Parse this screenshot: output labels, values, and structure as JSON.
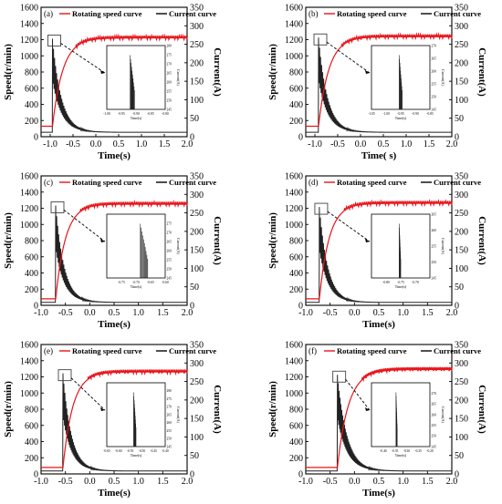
{
  "figure": {
    "colors": {
      "speed": "#e8141a",
      "current": "#222222",
      "axis": "#000000",
      "dash": "#000000"
    },
    "legend": {
      "speed": "Rotating speed curve",
      "current": "Current curve"
    },
    "y_left_label": "Speed(r/min)",
    "y_right_label": "Current(A)",
    "inset_y_label": "Current(A)",
    "inset_x_label": "Time(s)"
  },
  "chart_data": [
    {
      "type": "line",
      "label": "(a)",
      "xlabel": "Time(s)",
      "ylabel": "Speed(r/min)",
      "y2label": "Current(A)",
      "xlim": [
        -1.2,
        2.0
      ],
      "xticks": [
        "-1.0",
        "-0.5",
        "0.0",
        "0.5",
        "1.0",
        "1.5",
        "2.0"
      ],
      "ylim": [
        0,
        1600
      ],
      "yticks": [
        "0",
        "200",
        "400",
        "600",
        "800",
        "1000",
        "1200",
        "1400",
        "1600"
      ],
      "y2lim": [
        0,
        350
      ],
      "y2ticks": [
        "0",
        "50",
        "100",
        "150",
        "200",
        "250",
        "300",
        "350"
      ],
      "legend_position": "top",
      "series": [
        {
          "name": "Rotating speed curve",
          "axis": "left",
          "start": -0.95,
          "base": 130,
          "final": 1220,
          "tau": 0.09
        },
        {
          "name": "Current curve",
          "axis": "right",
          "start": -0.95,
          "base": 12,
          "peak": 265,
          "final": 12,
          "tau": 0.09
        }
      ],
      "inset": {
        "xlim": [
          -1.0,
          -0.8
        ],
        "xticks": [
          "-1.00",
          "-0.95",
          "-0.90",
          "-0.85",
          "-0.80"
        ],
        "ylim": [
          245,
          280
        ],
        "yticks": [
          "245",
          "250",
          "255",
          "260",
          "265",
          "270",
          "275",
          "280"
        ],
        "burst_x": [
          -0.92,
          -0.905
        ]
      }
    },
    {
      "type": "line",
      "label": "(b)",
      "xlabel": "Time( s)",
      "ylabel": "Speed(r/min)",
      "y2label": "Current(A)",
      "xlim": [
        -1.2,
        2.0
      ],
      "xticks": [
        "-1.0",
        "-0.5",
        "0.0",
        "0.5",
        "1.0",
        "1.5",
        "2.0"
      ],
      "ylim": [
        0,
        1600
      ],
      "yticks": [
        "0",
        "200",
        "400",
        "600",
        "800",
        "1000",
        "1200",
        "1400",
        "1600"
      ],
      "y2lim": [
        0,
        350
      ],
      "y2ticks": [
        "0",
        "50",
        "100",
        "150",
        "200",
        "250",
        "300",
        "350"
      ],
      "legend_position": "top",
      "series": [
        {
          "name": "Rotating speed curve",
          "axis": "left",
          "start": -0.92,
          "base": 130,
          "final": 1235,
          "tau": 0.09
        },
        {
          "name": "Current curve",
          "axis": "right",
          "start": -0.92,
          "base": 12,
          "peak": 268,
          "final": 12,
          "tau": 0.09
        }
      ],
      "inset": {
        "xlim": [
          -1.05,
          -0.85
        ],
        "xticks": [
          "-1.05",
          "-1.00",
          "-0.95",
          "-0.90",
          "-0.85"
        ],
        "ylim": [
          245,
          270
        ],
        "yticks": [
          "245",
          "250",
          "255",
          "260",
          "265",
          "270"
        ],
        "burst_x": [
          -0.955,
          -0.945
        ]
      }
    },
    {
      "type": "line",
      "label": "(c)",
      "xlabel": "Time(s)",
      "ylabel": "Speed(r/min)",
      "y2label": "Current(A)",
      "xlim": [
        -1.0,
        2.0
      ],
      "xticks": [
        "-1.0",
        "-0.5",
        "0.0",
        "0.5",
        "1.0",
        "1.5",
        "2.0"
      ],
      "ylim": [
        0,
        1600
      ],
      "yticks": [
        "0",
        "200",
        "400",
        "600",
        "800",
        "1000",
        "1200",
        "1400",
        "1600"
      ],
      "y2lim": [
        0,
        350
      ],
      "y2ticks": [
        "0",
        "50",
        "100",
        "150",
        "200",
        "250",
        "300",
        "350"
      ],
      "legend_position": "top",
      "series": [
        {
          "name": "Rotating speed curve",
          "axis": "left",
          "start": -0.7,
          "base": 80,
          "final": 1250,
          "tau": 0.08
        },
        {
          "name": "Current curve",
          "axis": "right",
          "start": -0.7,
          "base": 8,
          "peak": 270,
          "final": 8,
          "tau": 0.08
        }
      ],
      "inset": {
        "xlim": [
          -0.8,
          -0.6
        ],
        "xticks": [
          "-0.75",
          "-0.70",
          "-0.65",
          "-0.60"
        ],
        "ylim": [
          245,
          280
        ],
        "yticks": [
          "245",
          "250",
          "255",
          "260",
          "265",
          "270",
          "275"
        ],
        "burst_x": [
          -0.685,
          -0.66
        ]
      }
    },
    {
      "type": "line",
      "label": "(d)",
      "xlabel": "Time(s)",
      "ylabel": "Speed(r/min)",
      "y2label": "Current(A)",
      "xlim": [
        -1.0,
        2.0
      ],
      "xticks": [
        "-1.0",
        "-0.5",
        "0.0",
        "0.5",
        "1.0",
        "1.5",
        "2.0"
      ],
      "ylim": [
        0,
        1600
      ],
      "yticks": [
        "0",
        "200",
        "400",
        "600",
        "800",
        "1000",
        "1200",
        "1400",
        "1600"
      ],
      "y2lim": [
        0,
        350
      ],
      "y2ticks": [
        "0",
        "50",
        "100",
        "150",
        "200",
        "250",
        "300",
        "350"
      ],
      "legend_position": "top",
      "series": [
        {
          "name": "Rotating speed curve",
          "axis": "left",
          "start": -0.72,
          "base": 80,
          "final": 1260,
          "tau": 0.08
        },
        {
          "name": "Current curve",
          "axis": "right",
          "start": -0.72,
          "base": 8,
          "peak": 266,
          "final": 8,
          "tau": 0.08
        }
      ],
      "inset": {
        "xlim": [
          -0.85,
          -0.65
        ],
        "xticks": [
          "-0.80",
          "-0.75",
          "-0.70"
        ],
        "ylim": [
          245,
          265
        ],
        "yticks": [
          "245",
          "250",
          "255",
          "260",
          "265"
        ],
        "burst_x": [
          -0.755,
          -0.75
        ]
      }
    },
    {
      "type": "line",
      "label": "(e)",
      "xlabel": "Time(s)",
      "ylabel": "Speed(r/min)",
      "y2label": "Current(A)",
      "xlim": [
        -1.0,
        2.0
      ],
      "xticks": [
        "-1.0",
        "-0.5",
        "0.0",
        "0.5",
        "1.0",
        "1.5",
        "2.0"
      ],
      "ylim": [
        0,
        1600
      ],
      "yticks": [
        "0",
        "200",
        "400",
        "600",
        "800",
        "1000",
        "1200",
        "1400",
        "1600"
      ],
      "y2lim": [
        0,
        350
      ],
      "y2ticks": [
        "0",
        "50",
        "100",
        "150",
        "200",
        "250",
        "300",
        "350"
      ],
      "legend_position": "top",
      "series": [
        {
          "name": "Rotating speed curve",
          "axis": "left",
          "start": -0.55,
          "base": 80,
          "final": 1260,
          "tau": 0.08
        },
        {
          "name": "Current curve",
          "axis": "right",
          "start": -0.55,
          "base": 8,
          "peak": 272,
          "final": 8,
          "tau": 0.08
        }
      ],
      "inset": {
        "xlim": [
          -0.65,
          -0.4
        ],
        "xticks": [
          "-0.65",
          "-0.60",
          "-0.55",
          "-0.50",
          "-0.45",
          "-0.40"
        ],
        "ylim": [
          245,
          285
        ],
        "yticks": [
          "245",
          "250",
          "255",
          "260",
          "265",
          "270",
          "275",
          "280"
        ],
        "burst_x": [
          -0.535,
          -0.525
        ]
      }
    },
    {
      "type": "line",
      "label": "(f)",
      "xlabel": "Time(s)",
      "ylabel": "Speed(r/min)",
      "y2label": "Current(A)",
      "xlim": [
        -1.0,
        2.0
      ],
      "xticks": [
        "-1.0",
        "-0.5",
        "0.0",
        "0.5",
        "1.0",
        "1.5",
        "2.0"
      ],
      "ylim": [
        0,
        1600
      ],
      "yticks": [
        "0",
        "200",
        "400",
        "600",
        "800",
        "1000",
        "1200",
        "1400",
        "1600"
      ],
      "y2lim": [
        0,
        350
      ],
      "y2ticks": [
        "0",
        "50",
        "100",
        "150",
        "200",
        "250",
        "300",
        "350"
      ],
      "legend_position": "top",
      "series": [
        {
          "name": "Rotating speed curve",
          "axis": "left",
          "start": -0.35,
          "base": 80,
          "final": 1290,
          "tau": 0.09
        },
        {
          "name": "Current curve",
          "axis": "right",
          "start": -0.35,
          "base": 8,
          "peak": 268,
          "final": 8,
          "tau": 0.09
        }
      ],
      "inset": {
        "xlim": [
          -0.45,
          -0.2
        ],
        "xticks": [
          "-0.40",
          "-0.35",
          "-0.30",
          "-0.25",
          "-0.20"
        ],
        "ylim": [
          245,
          275
        ],
        "yticks": [
          "245",
          "250",
          "255",
          "260",
          "265",
          "270"
        ],
        "burst_x": [
          -0.345,
          -0.34
        ]
      }
    }
  ]
}
